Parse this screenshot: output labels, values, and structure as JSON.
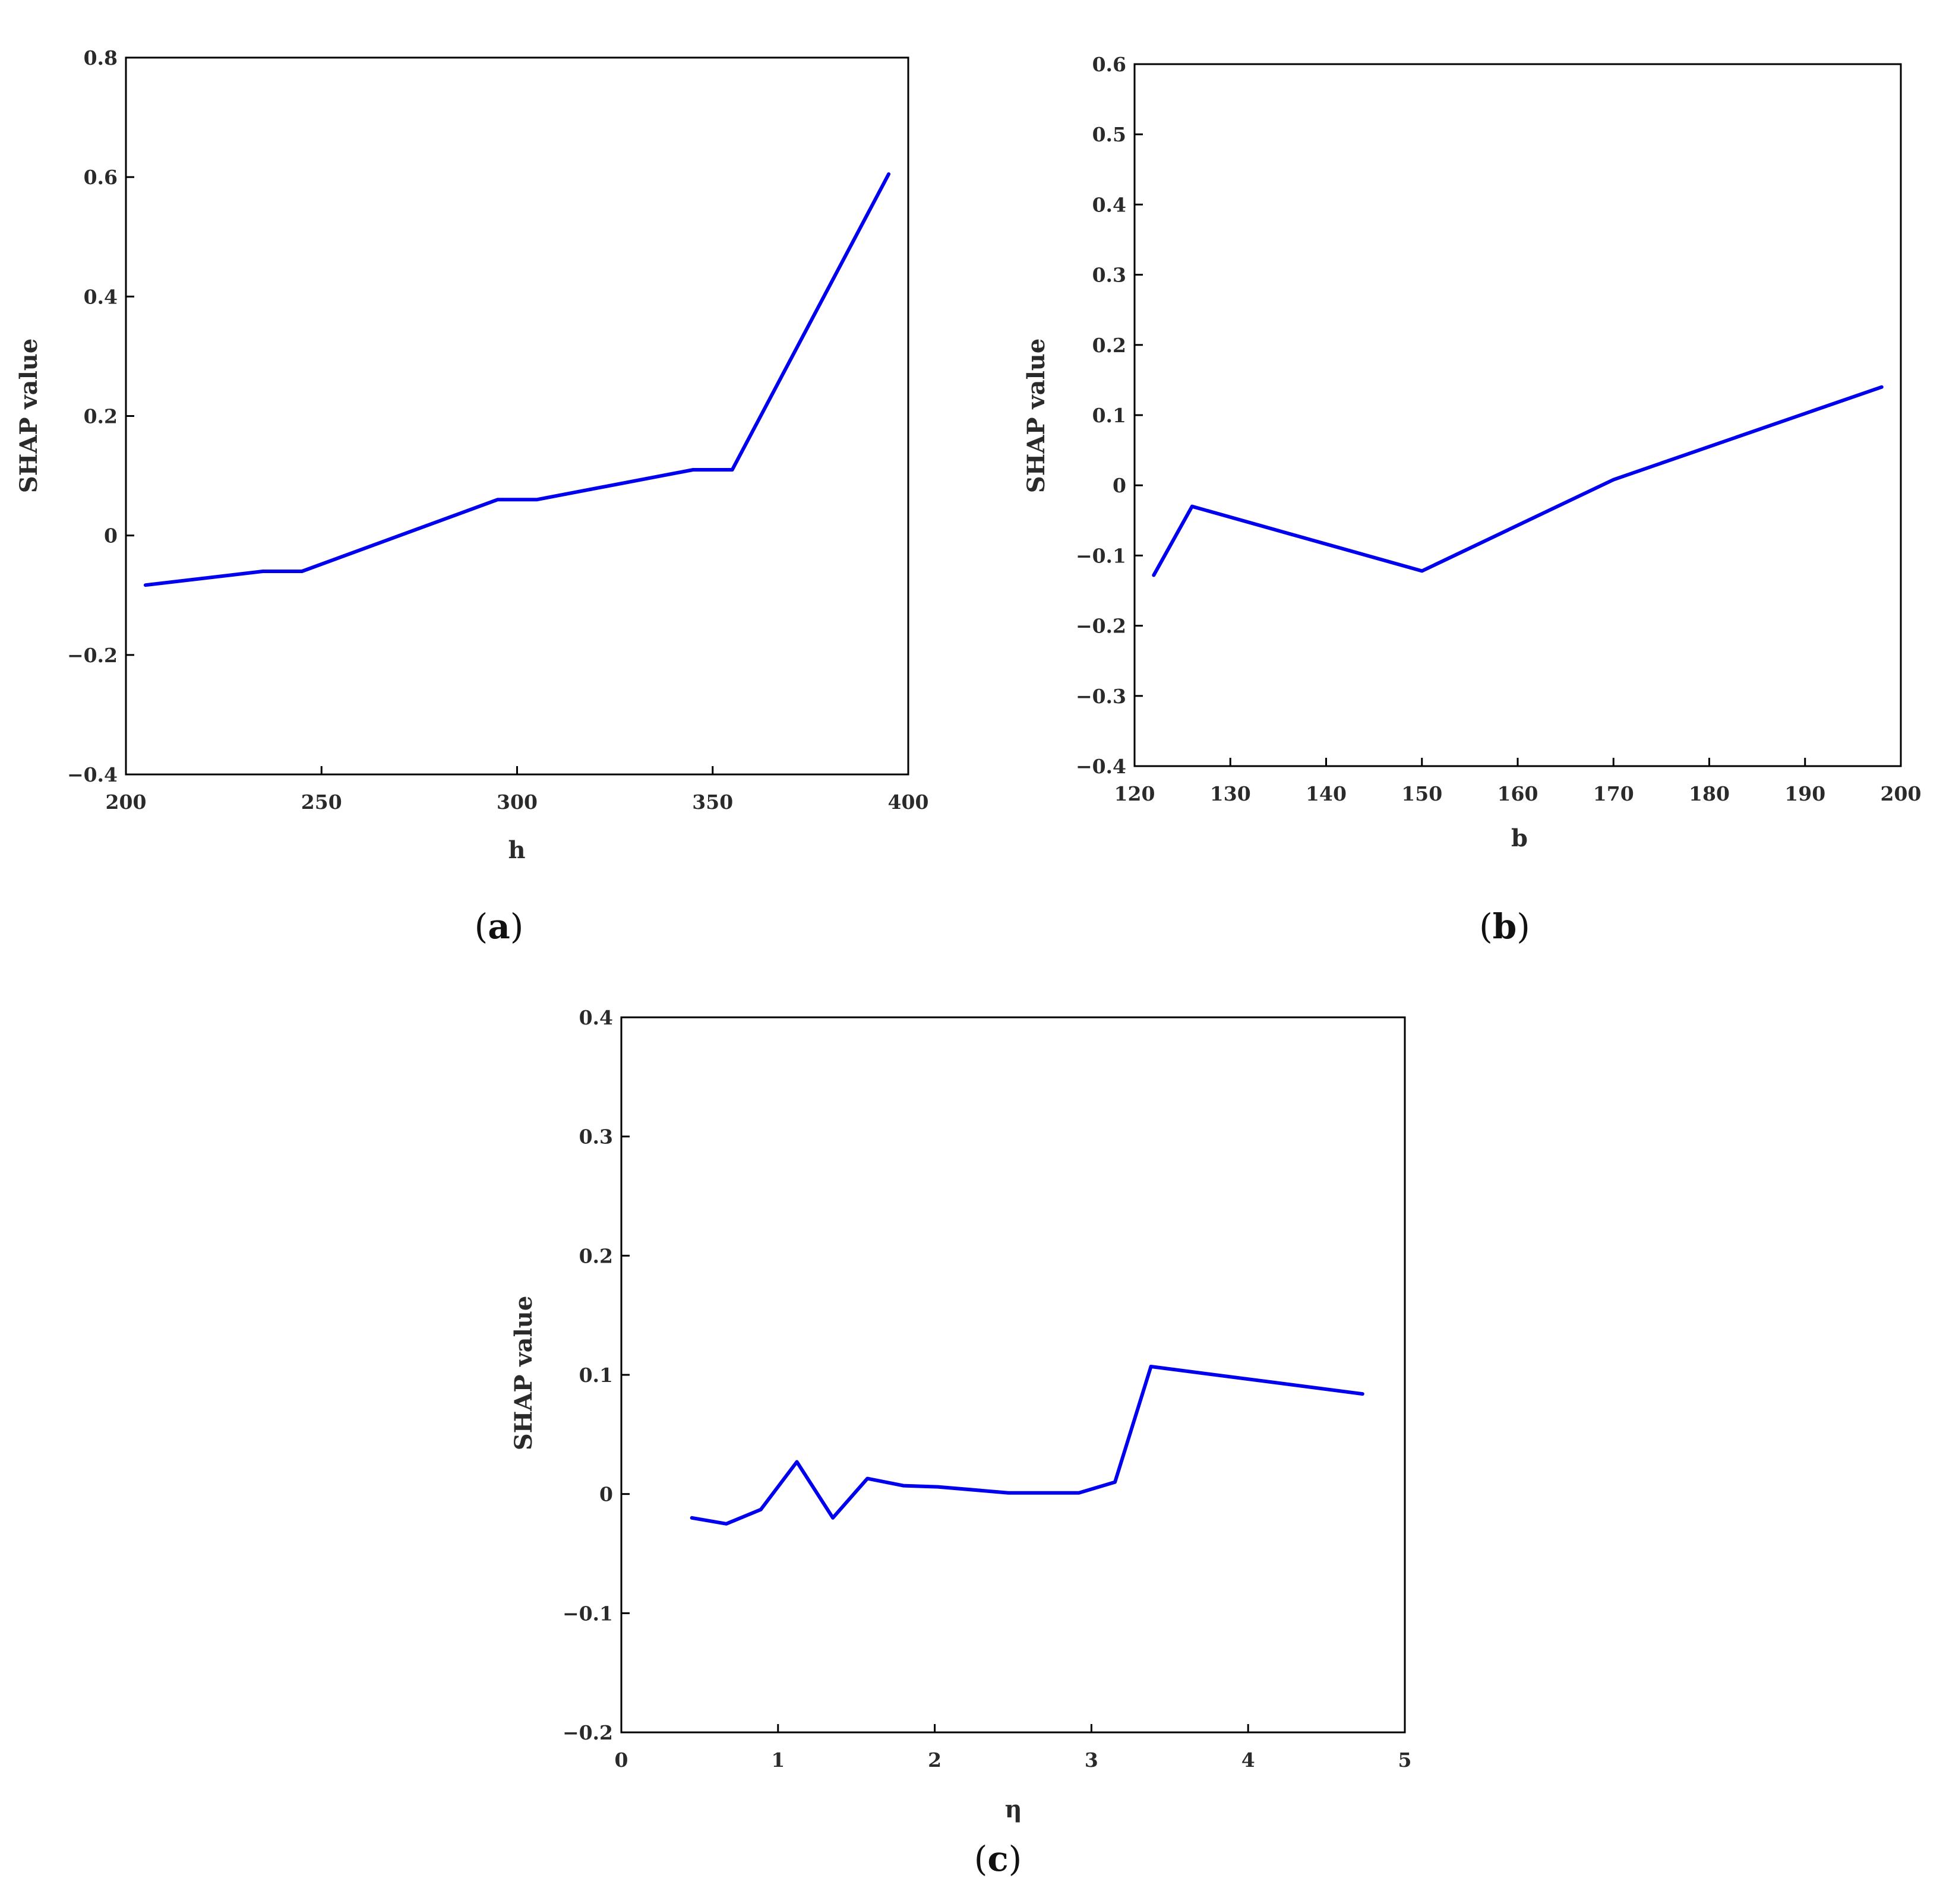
{
  "figure": {
    "panel_labels": [
      "(a)",
      "(b)",
      "(c)"
    ]
  },
  "chart_data": [
    {
      "type": "line",
      "title": "",
      "xlabel": "h",
      "ylabel": "SHAP value",
      "xlim": [
        200,
        400
      ],
      "ylim": [
        -0.4,
        0.8
      ],
      "xticks": [
        "200",
        "250",
        "300",
        "350",
        "400"
      ],
      "yticks": [
        "−0.4",
        "−0.2",
        "0",
        "0.2",
        "0.4",
        "0.6",
        "0.8"
      ],
      "grid": false,
      "series": [
        {
          "color": "#0000ee",
          "x": [
            205,
            235,
            245,
            295,
            305,
            345,
            355,
            395
          ],
          "y": [
            -0.083,
            -0.06,
            -0.06,
            0.06,
            0.06,
            0.11,
            0.11,
            0.605
          ]
        }
      ]
    },
    {
      "type": "line",
      "title": "",
      "xlabel": "b",
      "ylabel": "SHAP value",
      "xlim": [
        120,
        200
      ],
      "ylim": [
        -0.4,
        0.6
      ],
      "xticks": [
        "120",
        "130",
        "140",
        "150",
        "160",
        "170",
        "180",
        "190",
        "200"
      ],
      "yticks": [
        "−0.4",
        "−0.3",
        "−0.2",
        "−0.1",
        "0",
        "0.1",
        "0.2",
        "0.3",
        "0.4",
        "0.5",
        "0.6"
      ],
      "grid": false,
      "series": [
        {
          "color": "#0000ee",
          "x": [
            122,
            126,
            150,
            170,
            198
          ],
          "y": [
            -0.128,
            -0.03,
            -0.122,
            0.008,
            0.14
          ]
        }
      ]
    },
    {
      "type": "line",
      "title": "",
      "xlabel": "η",
      "ylabel": "SHAP value",
      "xlim": [
        0,
        5
      ],
      "ylim": [
        -0.2,
        0.4
      ],
      "xticks": [
        "0",
        "1",
        "2",
        "3",
        "4",
        "5"
      ],
      "yticks": [
        "−0.2",
        "−0.1",
        "0",
        "0.1",
        "0.2",
        "0.3",
        "0.4"
      ],
      "grid": false,
      "series": [
        {
          "color": "#0000ee",
          "x": [
            0.45,
            0.67,
            0.89,
            1.12,
            1.35,
            1.57,
            1.8,
            2.02,
            2.47,
            2.92,
            3.15,
            3.38,
            4.73
          ],
          "y": [
            -0.02,
            -0.025,
            -0.013,
            0.027,
            -0.02,
            0.013,
            0.007,
            0.006,
            0.001,
            0.001,
            0.01,
            0.107,
            0.084
          ]
        }
      ]
    }
  ]
}
